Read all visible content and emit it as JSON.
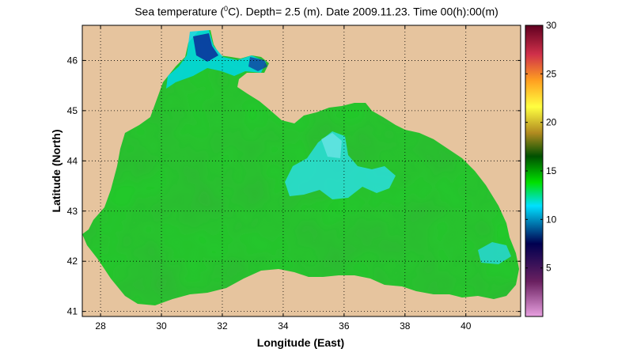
{
  "title": {
    "prefix": "Sea temperature (",
    "sup": "0",
    "suffix": "C). Depth=  2.5 (m). Date 2009.11.23. Time 00(h):00(m)"
  },
  "chart_data": {
    "type": "heatmap",
    "xlabel": "Longitude (East)",
    "ylabel": "Latitude (North)",
    "xlim": [
      27.4,
      41.8
    ],
    "ylim": [
      40.9,
      46.7
    ],
    "xticks": [
      28,
      30,
      32,
      34,
      36,
      38,
      40
    ],
    "yticks": [
      41,
      42,
      43,
      44,
      45,
      46
    ],
    "grid": "dotted",
    "colorbar": {
      "range": [
        0,
        30
      ],
      "ticks": [
        5,
        10,
        15,
        20,
        25,
        30
      ],
      "colors": [
        "#e8a0e0",
        "#6a2060",
        "#000050",
        "#00e0ff",
        "#00e000",
        "#005000",
        "#b08a20",
        "#ffff40",
        "#ffa020",
        "#d0304a",
        "#600020"
      ]
    },
    "land_color": "#e6c49e",
    "sea_base_color": "#22c82a"
  }
}
